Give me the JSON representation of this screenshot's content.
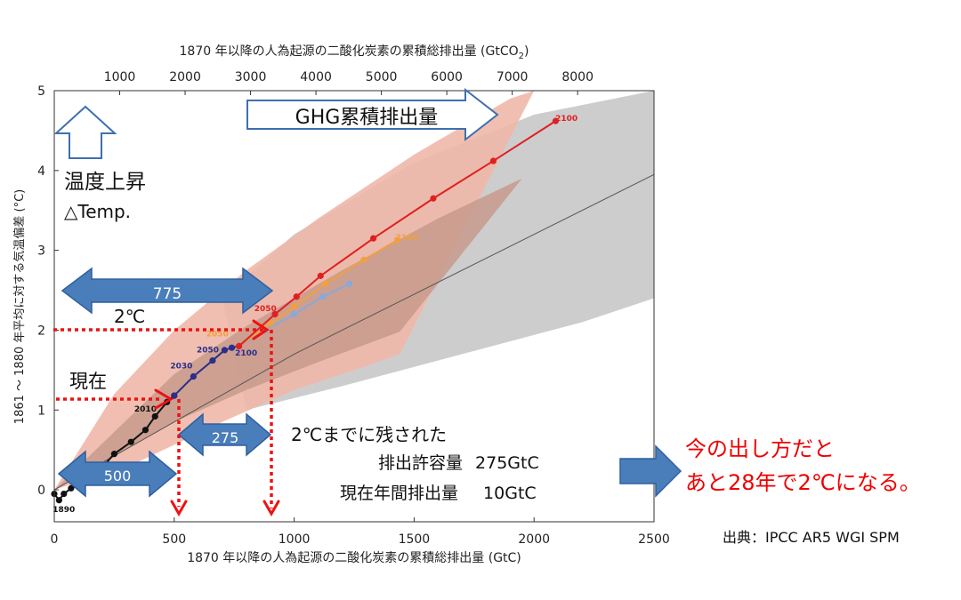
{
  "chart_data": {
    "type": "line",
    "title": "",
    "xlabel": "1870 年以降の人為起源の二酸化炭素の累積総排出量 (GtC)",
    "x2label": "1870 年以降の人為起源の二酸化炭素の累積総排出量 (GtCO",
    "x2label_sub": "2",
    "x2label_end": ")",
    "ylabel": "1861 ～ 1880 年平均に対する気温偏差 (°C)",
    "xlim": [
      0,
      2500
    ],
    "ylim": [
      -0.4,
      5
    ],
    "xticks": [
      0,
      500,
      1000,
      1500,
      2000,
      2500
    ],
    "yticks": [
      0,
      1,
      2,
      3,
      4,
      5
    ],
    "x2ticks": [
      1000,
      2000,
      3000,
      4000,
      5000,
      6000,
      7000,
      8000
    ],
    "grid": false,
    "series": [
      {
        "name": "",
        "color": "#111111",
        "points": [
          [
            0,
            -0.05
          ],
          [
            20,
            -0.13
          ],
          [
            40,
            -0.05
          ],
          [
            70,
            0.02
          ],
          [
            120,
            0.08
          ],
          [
            190,
            0.25
          ],
          [
            250,
            0.45
          ],
          [
            320,
            0.6
          ],
          [
            380,
            0.75
          ],
          [
            420,
            0.92
          ],
          [
            470,
            1.1
          ],
          [
            500,
            1.18
          ]
        ]
      },
      {
        "name": "",
        "color": "#2b2f8a",
        "points": [
          [
            500,
            1.18
          ],
          [
            580,
            1.42
          ],
          [
            660,
            1.62
          ],
          [
            710,
            1.75
          ],
          [
            740,
            1.78
          ],
          [
            770,
            1.8
          ]
        ]
      },
      {
        "name": "",
        "color": "#8aa8d8",
        "points": [
          [
            770,
            1.8
          ],
          [
            880,
            2.0
          ],
          [
            1000,
            2.2
          ],
          [
            1120,
            2.42
          ],
          [
            1230,
            2.58
          ]
        ]
      },
      {
        "name": "",
        "color": "#f0a040",
        "points": [
          [
            770,
            1.8
          ],
          [
            900,
            2.08
          ],
          [
            1000,
            2.3
          ],
          [
            1130,
            2.58
          ],
          [
            1290,
            2.88
          ],
          [
            1430,
            3.13
          ]
        ]
      },
      {
        "name": "",
        "color": "#e02020",
        "points": [
          [
            770,
            1.8
          ],
          [
            920,
            2.2
          ],
          [
            1010,
            2.42
          ],
          [
            1110,
            2.68
          ],
          [
            1330,
            3.15
          ],
          [
            1580,
            3.65
          ],
          [
            1830,
            4.12
          ],
          [
            2090,
            4.62
          ]
        ]
      }
    ],
    "point_labels": [
      {
        "text": "1890",
        "x": 40,
        "y": -0.28,
        "color": "#111111"
      },
      {
        "text": "2010",
        "x": 380,
        "y": 0.98,
        "color": "#111111"
      },
      {
        "text": "2030",
        "x": 530,
        "y": 1.52,
        "color": "#2b2f8a"
      },
      {
        "text": "2050",
        "x": 640,
        "y": 1.72,
        "color": "#2b2f8a"
      },
      {
        "text": "2050",
        "x": 680,
        "y": 1.92,
        "color": "#f0a040"
      },
      {
        "text": "2100",
        "x": 800,
        "y": 1.68,
        "color": "#2b2f8a"
      },
      {
        "text": "2050",
        "x": 880,
        "y": 2.24,
        "color": "#e02020"
      },
      {
        "text": "2100",
        "x": 1470,
        "y": 3.13,
        "color": "#f0a040"
      },
      {
        "text": "2100",
        "x": 2135,
        "y": 4.62,
        "color": "#e02020"
      }
    ],
    "bands": [
      {
        "name": "",
        "color": "#c8c8c8",
        "upper": [
          [
            700,
            2.4
          ],
          [
            1000,
            3.2
          ],
          [
            1500,
            4.1
          ],
          [
            2000,
            4.7
          ],
          [
            2500,
            5.0
          ]
        ],
        "lower": [
          [
            800,
            1.0
          ],
          [
            1200,
            1.3
          ],
          [
            1700,
            1.7
          ],
          [
            2200,
            2.1
          ],
          [
            2500,
            2.4
          ]
        ]
      },
      {
        "name": "",
        "color": "#efb8a8",
        "upper": [
          [
            250,
            1.2
          ],
          [
            500,
            2.0
          ],
          [
            800,
            2.75
          ],
          [
            1100,
            3.4
          ],
          [
            1500,
            4.2
          ],
          [
            1900,
            4.9
          ],
          [
            2000,
            5.0
          ]
        ],
        "lower": [
          [
            350,
            0.35
          ],
          [
            700,
            0.85
          ],
          [
            1000,
            1.25
          ],
          [
            1300,
            1.55
          ],
          [
            1440,
            1.7
          ]
        ]
      },
      {
        "name": "",
        "color": "#c79a8c",
        "upper": [
          [
            500,
            1.45
          ],
          [
            800,
            2.05
          ],
          [
            1200,
            2.75
          ],
          [
            1600,
            3.4
          ],
          [
            1950,
            3.9
          ]
        ],
        "lower": [
          [
            500,
            0.85
          ],
          [
            800,
            1.25
          ],
          [
            1100,
            1.6
          ],
          [
            1440,
            1.98
          ]
        ]
      }
    ],
    "median_line": [
      [
        0,
        0.0
      ],
      [
        500,
        0.85
      ],
      [
        1000,
        1.7
      ],
      [
        1500,
        2.45
      ],
      [
        2000,
        3.2
      ],
      [
        2500,
        3.95
      ]
    ]
  },
  "annotations": {
    "ghg": "GHG累積排出量",
    "temp_rise": "温度上昇",
    "temp_en": "△Temp.",
    "label_775": "775",
    "label_2c": "2℃",
    "label_now": "現在",
    "label_275": "275",
    "label_500": "500",
    "remain_line1": "2℃までに残された",
    "remain_line2": "排出許容量 275GtC",
    "remain_line3": "現在年間排出量 10GtC",
    "conclusion_line1": "今の出し方だと",
    "conclusion_line2": "あと28年で2℃になる。",
    "source": "出典：IPCC AR5 WGI SPM"
  },
  "colors": {
    "arrow_fill": "#4a7ebb",
    "arrow_stroke": "#2f5f9e",
    "dotted_red": "#ee1111",
    "text_red": "#ee0000"
  }
}
